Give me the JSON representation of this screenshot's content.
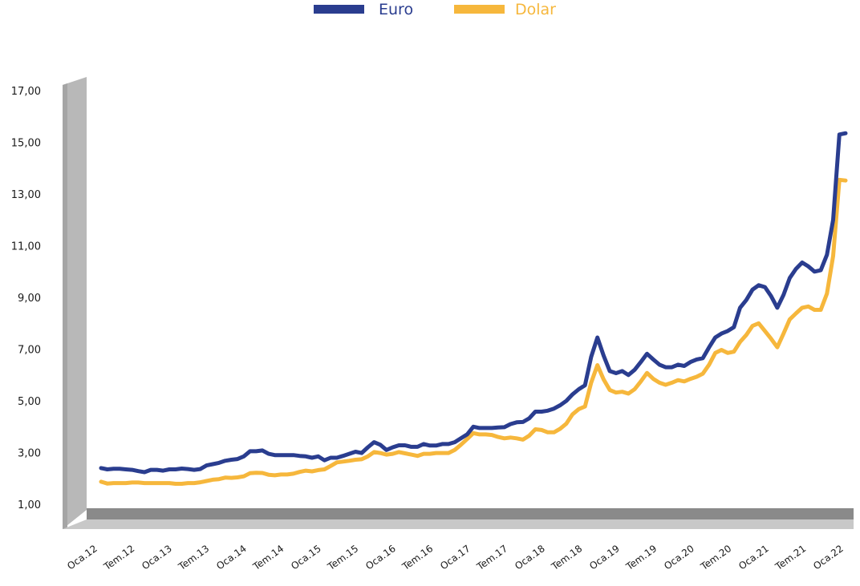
{
  "chart_data": {
    "type": "line",
    "title": "",
    "xlabel": "",
    "ylabel": "",
    "ylim": [
      0,
      17
    ],
    "y_ticks": [
      "1,00",
      "3,00",
      "5,00",
      "7,00",
      "9,00",
      "11,00",
      "13,00",
      "15,00",
      "17,00"
    ],
    "x_ticks": [
      "Oca.12",
      "Tem.12",
      "Oca.13",
      "Tem.13",
      "Oca.14",
      "Tem.14",
      "Oca.15",
      "Tem.15",
      "Oca.16",
      "Tem.16",
      "Oca.17",
      "Tem.17",
      "Oca.18",
      "Tem.18",
      "Oca.19",
      "Tem.19",
      "Oca.20",
      "Tem.20",
      "Oca.21",
      "Tem.21",
      "Oca.22"
    ],
    "legend_position": "top-center",
    "grid": false,
    "series": [
      {
        "name": "Euro",
        "color": "#2a3d8f",
        "points": [
          [
            "2012-01",
            2.4
          ],
          [
            "2012-02",
            2.35
          ],
          [
            "2012-03",
            2.37
          ],
          [
            "2012-04",
            2.37
          ],
          [
            "2012-05",
            2.35
          ],
          [
            "2012-06",
            2.33
          ],
          [
            "2012-07",
            2.28
          ],
          [
            "2012-08",
            2.24
          ],
          [
            "2012-09",
            2.33
          ],
          [
            "2012-10",
            2.33
          ],
          [
            "2012-11",
            2.3
          ],
          [
            "2012-12",
            2.35
          ],
          [
            "2013-01",
            2.35
          ],
          [
            "2013-02",
            2.38
          ],
          [
            "2013-03",
            2.36
          ],
          [
            "2013-04",
            2.33
          ],
          [
            "2013-05",
            2.36
          ],
          [
            "2013-06",
            2.5
          ],
          [
            "2013-07",
            2.55
          ],
          [
            "2013-08",
            2.6
          ],
          [
            "2013-09",
            2.68
          ],
          [
            "2013-10",
            2.72
          ],
          [
            "2013-11",
            2.75
          ],
          [
            "2013-12",
            2.85
          ],
          [
            "2014-01",
            3.05
          ],
          [
            "2014-02",
            3.05
          ],
          [
            "2014-03",
            3.08
          ],
          [
            "2014-04",
            2.95
          ],
          [
            "2014-05",
            2.9
          ],
          [
            "2014-06",
            2.9
          ],
          [
            "2014-07",
            2.9
          ],
          [
            "2014-08",
            2.9
          ],
          [
            "2014-09",
            2.87
          ],
          [
            "2014-10",
            2.85
          ],
          [
            "2014-11",
            2.8
          ],
          [
            "2014-12",
            2.85
          ],
          [
            "2015-01",
            2.7
          ],
          [
            "2015-02",
            2.8
          ],
          [
            "2015-03",
            2.8
          ],
          [
            "2015-04",
            2.87
          ],
          [
            "2015-05",
            2.95
          ],
          [
            "2015-06",
            3.03
          ],
          [
            "2015-07",
            2.98
          ],
          [
            "2015-08",
            3.2
          ],
          [
            "2015-09",
            3.4
          ],
          [
            "2015-10",
            3.3
          ],
          [
            "2015-11",
            3.1
          ],
          [
            "2015-12",
            3.2
          ],
          [
            "2016-01",
            3.28
          ],
          [
            "2016-02",
            3.28
          ],
          [
            "2016-03",
            3.22
          ],
          [
            "2016-04",
            3.22
          ],
          [
            "2016-05",
            3.33
          ],
          [
            "2016-06",
            3.27
          ],
          [
            "2016-07",
            3.27
          ],
          [
            "2016-08",
            3.33
          ],
          [
            "2016-09",
            3.33
          ],
          [
            "2016-10",
            3.4
          ],
          [
            "2016-11",
            3.55
          ],
          [
            "2016-12",
            3.7
          ],
          [
            "2017-01",
            4.0
          ],
          [
            "2017-02",
            3.95
          ],
          [
            "2017-03",
            3.95
          ],
          [
            "2017-04",
            3.95
          ],
          [
            "2017-05",
            3.97
          ],
          [
            "2017-06",
            3.98
          ],
          [
            "2017-07",
            4.1
          ],
          [
            "2017-08",
            4.17
          ],
          [
            "2017-09",
            4.18
          ],
          [
            "2017-10",
            4.32
          ],
          [
            "2017-11",
            4.58
          ],
          [
            "2017-12",
            4.58
          ],
          [
            "2018-01",
            4.62
          ],
          [
            "2018-02",
            4.7
          ],
          [
            "2018-03",
            4.83
          ],
          [
            "2018-04",
            5.0
          ],
          [
            "2018-05",
            5.25
          ],
          [
            "2018-06",
            5.45
          ],
          [
            "2018-07",
            5.6
          ],
          [
            "2018-08",
            6.7
          ],
          [
            "2018-09",
            7.45
          ],
          [
            "2018-10",
            6.75
          ],
          [
            "2018-11",
            6.15
          ],
          [
            "2018-12",
            6.07
          ],
          [
            "2019-01",
            6.15
          ],
          [
            "2019-02",
            6.0
          ],
          [
            "2019-03",
            6.2
          ],
          [
            "2019-04",
            6.5
          ],
          [
            "2019-05",
            6.82
          ],
          [
            "2019-06",
            6.6
          ],
          [
            "2019-07",
            6.4
          ],
          [
            "2019-08",
            6.3
          ],
          [
            "2019-09",
            6.3
          ],
          [
            "2019-10",
            6.4
          ],
          [
            "2019-11",
            6.35
          ],
          [
            "2019-12",
            6.5
          ],
          [
            "2020-01",
            6.6
          ],
          [
            "2020-02",
            6.65
          ],
          [
            "2020-03",
            7.07
          ],
          [
            "2020-04",
            7.45
          ],
          [
            "2020-05",
            7.6
          ],
          [
            "2020-06",
            7.7
          ],
          [
            "2020-07",
            7.85
          ],
          [
            "2020-08",
            8.6
          ],
          [
            "2020-09",
            8.9
          ],
          [
            "2020-10",
            9.3
          ],
          [
            "2020-11",
            9.47
          ],
          [
            "2020-12",
            9.4
          ],
          [
            "2021-01",
            9.05
          ],
          [
            "2021-02",
            8.6
          ],
          [
            "2021-03",
            9.1
          ],
          [
            "2021-04",
            9.75
          ],
          [
            "2021-05",
            10.1
          ],
          [
            "2021-06",
            10.35
          ],
          [
            "2021-07",
            10.2
          ],
          [
            "2021-08",
            10.0
          ],
          [
            "2021-09",
            10.05
          ],
          [
            "2021-10",
            10.65
          ],
          [
            "2021-11",
            12.0
          ],
          [
            "2021-12",
            15.3
          ],
          [
            "2022-01",
            15.35
          ]
        ]
      },
      {
        "name": "Dolar",
        "color": "#f6b73c",
        "points": [
          [
            "2012-01",
            1.87
          ],
          [
            "2012-02",
            1.8
          ],
          [
            "2012-03",
            1.82
          ],
          [
            "2012-04",
            1.82
          ],
          [
            "2012-05",
            1.82
          ],
          [
            "2012-06",
            1.84
          ],
          [
            "2012-07",
            1.84
          ],
          [
            "2012-08",
            1.82
          ],
          [
            "2012-09",
            1.82
          ],
          [
            "2012-10",
            1.82
          ],
          [
            "2012-11",
            1.82
          ],
          [
            "2012-12",
            1.82
          ],
          [
            "2013-01",
            1.79
          ],
          [
            "2013-02",
            1.79
          ],
          [
            "2013-03",
            1.82
          ],
          [
            "2013-04",
            1.82
          ],
          [
            "2013-05",
            1.85
          ],
          [
            "2013-06",
            1.9
          ],
          [
            "2013-07",
            1.95
          ],
          [
            "2013-08",
            1.97
          ],
          [
            "2013-09",
            2.03
          ],
          [
            "2013-10",
            2.02
          ],
          [
            "2013-11",
            2.04
          ],
          [
            "2013-12",
            2.08
          ],
          [
            "2014-01",
            2.2
          ],
          [
            "2014-02",
            2.22
          ],
          [
            "2014-03",
            2.21
          ],
          [
            "2014-04",
            2.14
          ],
          [
            "2014-05",
            2.12
          ],
          [
            "2014-06",
            2.15
          ],
          [
            "2014-07",
            2.15
          ],
          [
            "2014-08",
            2.18
          ],
          [
            "2014-09",
            2.25
          ],
          [
            "2014-10",
            2.3
          ],
          [
            "2014-11",
            2.27
          ],
          [
            "2014-12",
            2.32
          ],
          [
            "2015-01",
            2.35
          ],
          [
            "2015-02",
            2.48
          ],
          [
            "2015-03",
            2.62
          ],
          [
            "2015-04",
            2.65
          ],
          [
            "2015-05",
            2.68
          ],
          [
            "2015-06",
            2.72
          ],
          [
            "2015-07",
            2.74
          ],
          [
            "2015-08",
            2.85
          ],
          [
            "2015-09",
            3.02
          ],
          [
            "2015-10",
            2.98
          ],
          [
            "2015-11",
            2.92
          ],
          [
            "2015-12",
            2.95
          ],
          [
            "2016-01",
            3.02
          ],
          [
            "2016-02",
            2.97
          ],
          [
            "2016-03",
            2.92
          ],
          [
            "2016-04",
            2.87
          ],
          [
            "2016-05",
            2.95
          ],
          [
            "2016-06",
            2.95
          ],
          [
            "2016-07",
            2.98
          ],
          [
            "2016-08",
            2.98
          ],
          [
            "2016-09",
            2.98
          ],
          [
            "2016-10",
            3.1
          ],
          [
            "2016-11",
            3.3
          ],
          [
            "2016-12",
            3.52
          ],
          [
            "2017-01",
            3.75
          ],
          [
            "2017-02",
            3.7
          ],
          [
            "2017-03",
            3.7
          ],
          [
            "2017-04",
            3.68
          ],
          [
            "2017-05",
            3.6
          ],
          [
            "2017-06",
            3.55
          ],
          [
            "2017-07",
            3.58
          ],
          [
            "2017-08",
            3.55
          ],
          [
            "2017-09",
            3.5
          ],
          [
            "2017-10",
            3.65
          ],
          [
            "2017-11",
            3.9
          ],
          [
            "2017-12",
            3.87
          ],
          [
            "2018-01",
            3.78
          ],
          [
            "2018-02",
            3.78
          ],
          [
            "2018-03",
            3.92
          ],
          [
            "2018-04",
            4.12
          ],
          [
            "2018-05",
            4.48
          ],
          [
            "2018-06",
            4.68
          ],
          [
            "2018-07",
            4.78
          ],
          [
            "2018-08",
            5.7
          ],
          [
            "2018-09",
            6.38
          ],
          [
            "2018-10",
            5.83
          ],
          [
            "2018-11",
            5.42
          ],
          [
            "2018-12",
            5.32
          ],
          [
            "2019-01",
            5.35
          ],
          [
            "2019-02",
            5.28
          ],
          [
            "2019-03",
            5.45
          ],
          [
            "2019-04",
            5.75
          ],
          [
            "2019-05",
            6.08
          ],
          [
            "2019-06",
            5.85
          ],
          [
            "2019-07",
            5.7
          ],
          [
            "2019-08",
            5.62
          ],
          [
            "2019-09",
            5.7
          ],
          [
            "2019-10",
            5.8
          ],
          [
            "2019-11",
            5.75
          ],
          [
            "2019-12",
            5.85
          ],
          [
            "2020-01",
            5.93
          ],
          [
            "2020-02",
            6.05
          ],
          [
            "2020-03",
            6.4
          ],
          [
            "2020-04",
            6.85
          ],
          [
            "2020-05",
            6.97
          ],
          [
            "2020-06",
            6.85
          ],
          [
            "2020-07",
            6.9
          ],
          [
            "2020-08",
            7.28
          ],
          [
            "2020-09",
            7.55
          ],
          [
            "2020-10",
            7.9
          ],
          [
            "2020-11",
            8.0
          ],
          [
            "2020-12",
            7.7
          ],
          [
            "2021-01",
            7.4
          ],
          [
            "2021-02",
            7.07
          ],
          [
            "2021-03",
            7.6
          ],
          [
            "2021-04",
            8.15
          ],
          [
            "2021-05",
            8.38
          ],
          [
            "2021-06",
            8.6
          ],
          [
            "2021-07",
            8.65
          ],
          [
            "2021-08",
            8.52
          ],
          [
            "2021-09",
            8.52
          ],
          [
            "2021-10",
            9.15
          ],
          [
            "2021-11",
            10.6
          ],
          [
            "2021-12",
            13.55
          ],
          [
            "2022-01",
            13.52
          ]
        ]
      }
    ]
  }
}
